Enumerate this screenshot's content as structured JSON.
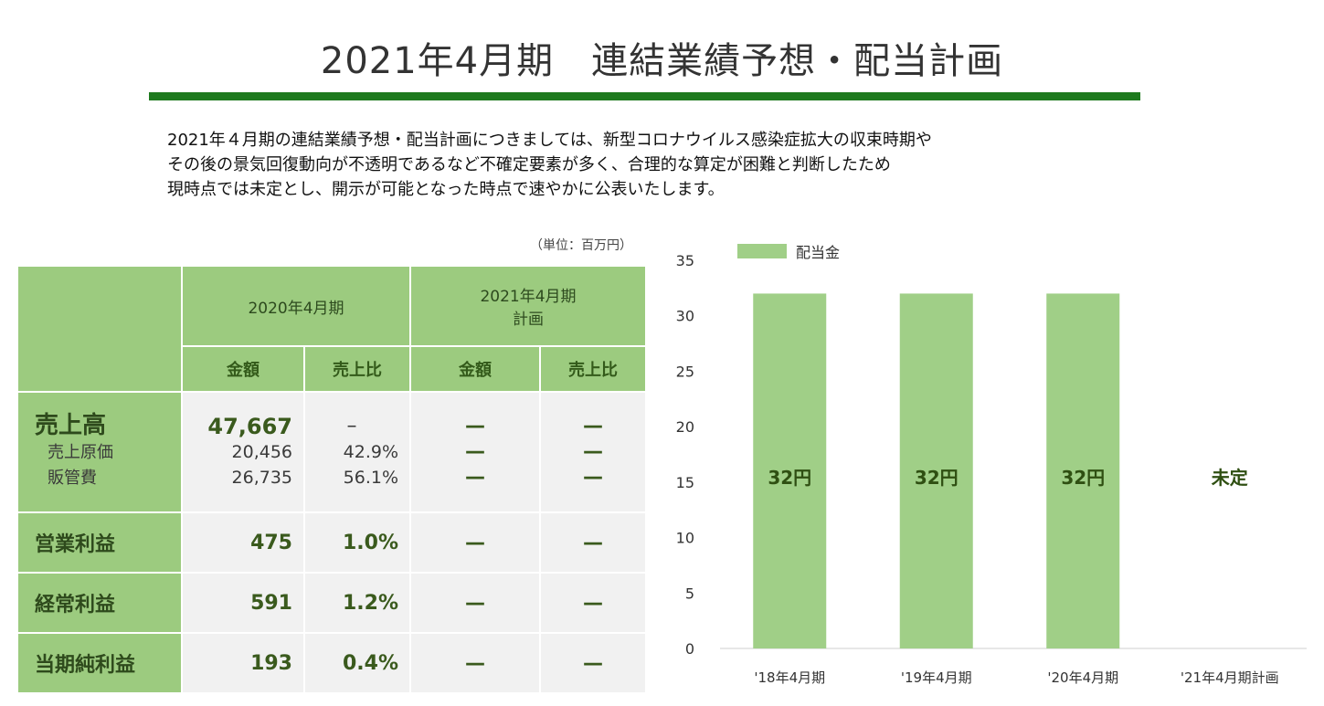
{
  "title": "2021年4月期　連結業績予想・配当計画",
  "intro": [
    "2021年４月期の連結業績予想・配当計画につきましては、新型コロナウイルス感染症拡大の収束時期や",
    "その後の景気回復動向が不透明であるなど不確定要素が多く、合理的な算定が困難と判断したため",
    "現時点では未定とし、開示が可能となった時点で速やかに公表いたします。"
  ],
  "unit": "（単位：百万円）",
  "table": {
    "period1": "2020年4月期",
    "period2_line1": "2021年4月期",
    "period2_line2": "計画",
    "col_amount": "金額",
    "col_ratio": "売上比",
    "rows": {
      "sales": {
        "label": "売上高",
        "amount": "47,667",
        "ratio": "–",
        "plan_amount": "—",
        "plan_ratio": "—"
      },
      "cogs": {
        "label": "売上原価",
        "amount": "20,456",
        "ratio": "42.9%",
        "plan_amount": "—",
        "plan_ratio": "—"
      },
      "sga": {
        "label": "販管費",
        "amount": "26,735",
        "ratio": "56.1%",
        "plan_amount": "—",
        "plan_ratio": "—"
      },
      "op": {
        "label": "営業利益",
        "amount": "475",
        "ratio": "1.0%",
        "plan_amount": "—",
        "plan_ratio": "—"
      },
      "ord": {
        "label": "経常利益",
        "amount": "591",
        "ratio": "1.2%",
        "plan_amount": "—",
        "plan_ratio": "—"
      },
      "net": {
        "label": "当期純利益",
        "amount": "193",
        "ratio": "0.4%",
        "plan_amount": "—",
        "plan_ratio": "—"
      }
    }
  },
  "chart_data": {
    "type": "bar",
    "categories": [
      "'18年4月期",
      "'19年4月期",
      "'20年4月期",
      "'21年4月期計画"
    ],
    "series": [
      {
        "name": "配当金",
        "values": [
          32,
          32,
          32,
          null
        ]
      }
    ],
    "data_labels": [
      "32円",
      "32円",
      "32円",
      "未定"
    ],
    "ylim": [
      0,
      35
    ],
    "yticks": [
      0,
      5,
      10,
      15,
      20,
      25,
      30,
      35
    ],
    "legend": "top-left",
    "grid": false,
    "colors": {
      "bar": "#a0cf87",
      "label": "#2f4f12"
    }
  }
}
